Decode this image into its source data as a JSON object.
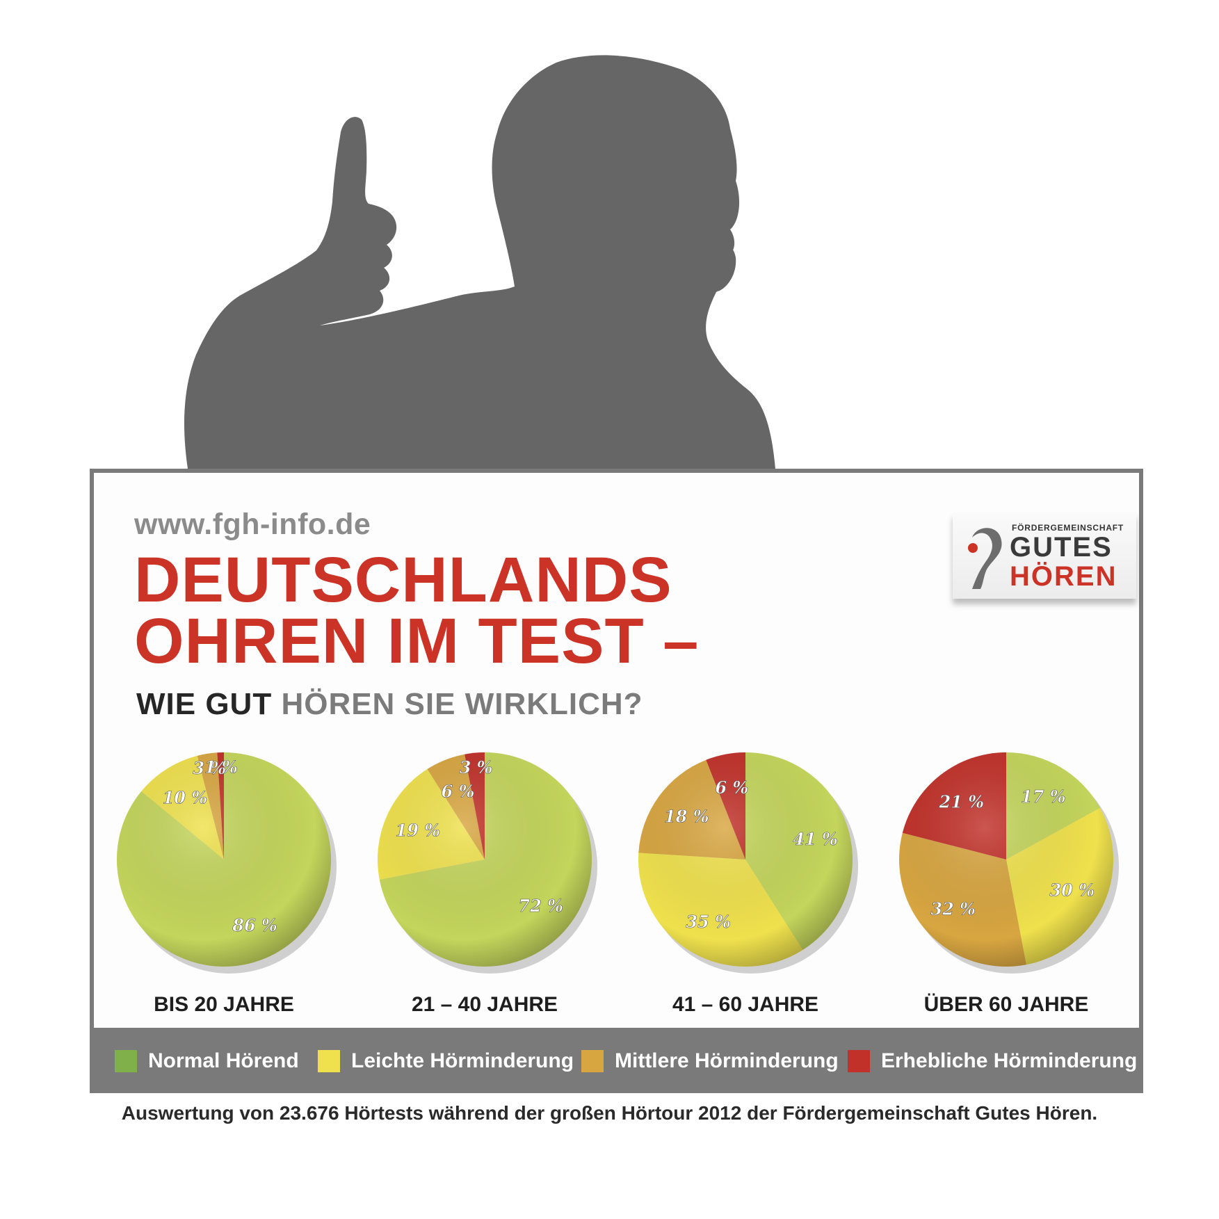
{
  "header": {
    "url": "www.fgh-info.de",
    "title_line1": "DEUTSCHLANDS",
    "title_line2": "OHREN IM TEST –",
    "subtitle_dark": "WIE GUT",
    "subtitle_grey": "HÖREN SIE WIRKLICH?"
  },
  "logo": {
    "small_text": "FÖRDERGEMEINSCHAFT",
    "line1": "GUTES",
    "line2": "HÖREN"
  },
  "colors": {
    "normal": "#c4d55c",
    "leicht": "#efe14d",
    "mittel": "#d8a641",
    "erheblich": "#c1312a"
  },
  "chart_data": [
    {
      "type": "pie",
      "title": "BIS 20 JAHRE",
      "slices": [
        {
          "category": "Normal Hörend",
          "value": 86,
          "label": "86 %"
        },
        {
          "category": "Leichte Hörminderung",
          "value": 10,
          "label": "10 %"
        },
        {
          "category": "Mittlere Hörminderung",
          "value": 3,
          "label": "3 %"
        },
        {
          "category": "Erhebliche Hörminderung",
          "value": 1,
          "label": "1 %"
        }
      ]
    },
    {
      "type": "pie",
      "title": "21 – 40 JAHRE",
      "slices": [
        {
          "category": "Normal Hörend",
          "value": 72,
          "label": "72 %"
        },
        {
          "category": "Leichte Hörminderung",
          "value": 19,
          "label": "19 %"
        },
        {
          "category": "Mittlere Hörminderung",
          "value": 6,
          "label": "6 %"
        },
        {
          "category": "Erhebliche Hörminderung",
          "value": 3,
          "label": "3 %"
        }
      ]
    },
    {
      "type": "pie",
      "title": "41 – 60 JAHRE",
      "slices": [
        {
          "category": "Normal Hörend",
          "value": 41,
          "label": "41 %"
        },
        {
          "category": "Leichte Hörminderung",
          "value": 35,
          "label": "35 %"
        },
        {
          "category": "Mittlere Hörminderung",
          "value": 18,
          "label": "18 %"
        },
        {
          "category": "Erhebliche Hörminderung",
          "value": 6,
          "label": "6 %"
        }
      ]
    },
    {
      "type": "pie",
      "title": "ÜBER 60 JAHRE",
      "slices": [
        {
          "category": "Normal Hörend",
          "value": 17,
          "label": "17 %"
        },
        {
          "category": "Leichte Hörminderung",
          "value": 30,
          "label": "30 %"
        },
        {
          "category": "Mittlere Hörminderung",
          "value": 32,
          "label": "32 %"
        },
        {
          "category": "Erhebliche Hörminderung",
          "value": 21,
          "label": "21 %"
        }
      ]
    }
  ],
  "legend": [
    {
      "label": "Normal Hörend",
      "color": "#7fb04a"
    },
    {
      "label": "Leichte Hörminderung",
      "color": "#efe14d"
    },
    {
      "label": "Mittlere Hörminderung",
      "color": "#d8a641"
    },
    {
      "label": "Erhebliche Hörminderung",
      "color": "#c1312a"
    }
  ],
  "caption": "Auswertung von 23.676 Hörtests während der großen Hörtour 2012 der Fördergemeinschaft Gutes Hören."
}
